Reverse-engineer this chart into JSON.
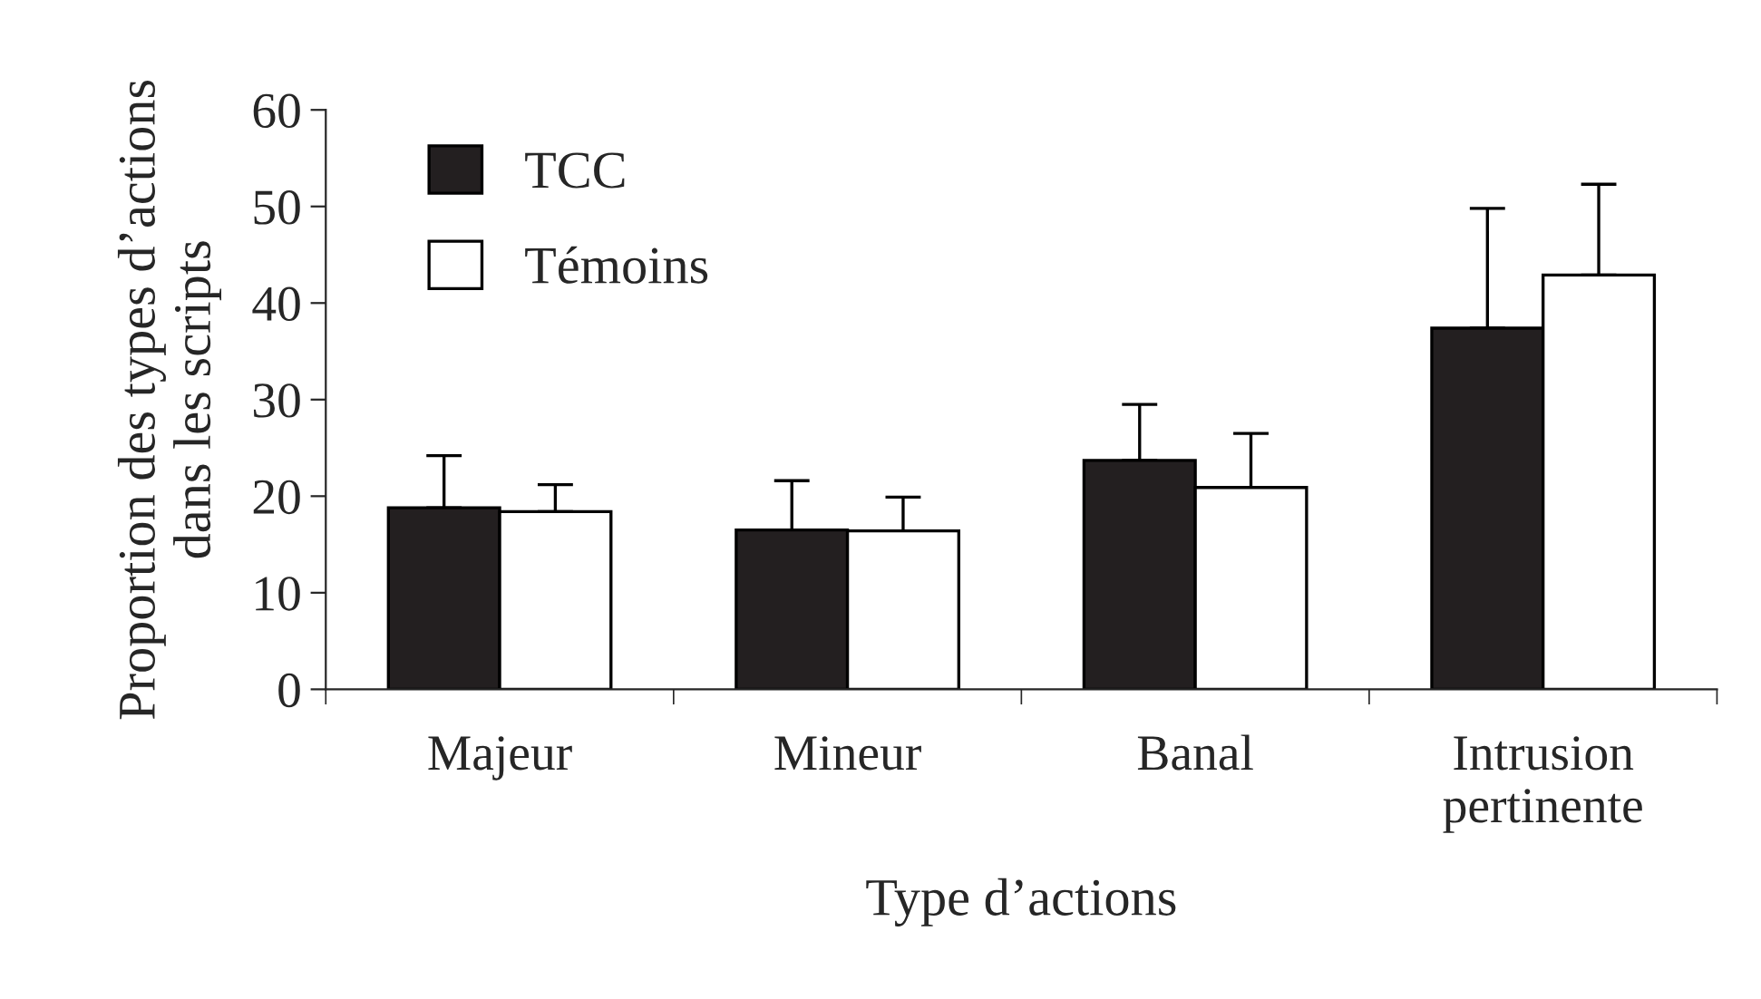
{
  "chart_data": {
    "type": "bar",
    "xlabel": "Type d’actions",
    "ylabel": "Proportion des types d’actions\ndans les scripts",
    "categories": [
      "Majeur",
      "Mineur",
      "Banal",
      "Intrusion\npertinente"
    ],
    "series": [
      {
        "name": "TCC",
        "color": "#231f20",
        "values": [
          18.8,
          16.5,
          23.7,
          37.4
        ],
        "errors": [
          [
            18.8,
            24.2
          ],
          [
            16.5,
            21.6
          ],
          [
            23.7,
            29.5
          ],
          [
            37.4,
            49.8
          ]
        ]
      },
      {
        "name": "Témoins",
        "color": "#ffffff",
        "values": [
          18.4,
          16.4,
          20.9,
          42.9
        ],
        "errors": [
          [
            18.4,
            21.2
          ],
          [
            16.4,
            19.9
          ],
          [
            20.9,
            26.5
          ],
          [
            42.9,
            52.3
          ]
        ]
      }
    ],
    "ylim": [
      0,
      60
    ],
    "yticks": [
      0,
      10,
      20,
      30,
      40,
      50,
      60
    ],
    "grid": false,
    "legend": "top left"
  }
}
